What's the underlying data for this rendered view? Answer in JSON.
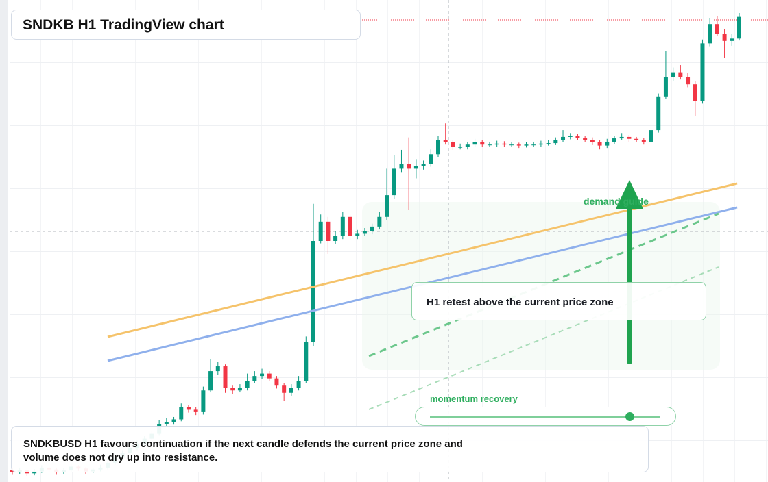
{
  "chart_data": {
    "type": "candlestick",
    "title": "SNDKB H1 TradingView chart",
    "up_color": "#089981",
    "down_color": "#f23645",
    "ylim": [
      0,
      100
    ],
    "candles": [
      [
        2.5,
        3,
        1.5,
        2
      ],
      [
        2,
        3,
        1.6,
        2.5
      ],
      [
        2.5,
        2.9,
        1.3,
        1.8
      ],
      [
        1.8,
        2.7,
        1.4,
        2.2
      ],
      [
        2.2,
        3.5,
        1.9,
        3
      ],
      [
        3,
        3.3,
        2.1,
        2.6
      ],
      [
        2.6,
        3,
        1.5,
        2
      ],
      [
        2,
        2.9,
        1.7,
        2.4
      ],
      [
        2.4,
        3.7,
        2.1,
        3.2
      ],
      [
        3.2,
        3.5,
        2.3,
        2.8
      ],
      [
        2.8,
        3.1,
        1.7,
        2.2
      ],
      [
        2.2,
        3,
        1.9,
        2.6
      ],
      [
        2.6,
        3.6,
        2.2,
        3
      ],
      [
        3,
        4.6,
        2.6,
        4
      ],
      [
        4,
        5.5,
        3.6,
        5
      ],
      [
        5,
        6.6,
        4.5,
        6
      ],
      [
        6,
        7.5,
        5.5,
        7
      ],
      [
        7,
        8.6,
        6.6,
        8
      ],
      [
        8,
        9.5,
        7.5,
        9
      ],
      [
        9,
        10.6,
        8.5,
        10
      ],
      [
        10,
        12.8,
        9.6,
        12
      ],
      [
        12,
        13.3,
        11.5,
        12.5
      ],
      [
        12.5,
        13.5,
        11.9,
        13
      ],
      [
        13,
        16.3,
        12.6,
        15.5
      ],
      [
        15.5,
        16,
        14.4,
        15
      ],
      [
        15,
        15.5,
        13.9,
        14.5
      ],
      [
        14.5,
        19.8,
        14,
        19
      ],
      [
        19,
        25.5,
        18.6,
        23
      ],
      [
        23,
        25,
        22.3,
        24
      ],
      [
        24,
        24.4,
        18.5,
        19.5
      ],
      [
        19.5,
        20,
        18.3,
        19
      ],
      [
        19,
        20.3,
        18.6,
        19.5
      ],
      [
        19.5,
        22.5,
        19,
        21
      ],
      [
        21,
        23,
        20.5,
        22
      ],
      [
        22,
        23.5,
        21.4,
        22.5
      ],
      [
        22.5,
        23,
        20.9,
        21.5
      ],
      [
        21.5,
        22,
        19.4,
        20
      ],
      [
        20,
        20.5,
        16.8,
        18.5
      ],
      [
        18.5,
        20.3,
        17.9,
        19.5
      ],
      [
        19.5,
        22,
        19,
        21
      ],
      [
        21,
        30.2,
        20.5,
        29
      ],
      [
        29,
        57.7,
        28.2,
        50
      ],
      [
        50,
        55.5,
        49.5,
        54
      ],
      [
        54,
        55,
        47.3,
        50
      ],
      [
        50,
        52,
        49.4,
        51
      ],
      [
        51,
        56,
        50.4,
        55
      ],
      [
        55,
        55.5,
        50.2,
        51
      ],
      [
        51,
        52.3,
        50.4,
        51.5
      ],
      [
        51.5,
        52.7,
        51,
        52
      ],
      [
        52,
        53.6,
        51.4,
        53
      ],
      [
        53,
        56,
        52.4,
        55
      ],
      [
        55,
        65,
        54.4,
        59.5
      ],
      [
        59.5,
        67.8,
        58.8,
        65
      ],
      [
        65,
        68.9,
        64.3,
        66
      ],
      [
        66,
        71.5,
        56.5,
        65
      ],
      [
        65,
        67,
        63,
        65.5
      ],
      [
        65.5,
        66.7,
        64.8,
        66
      ],
      [
        66,
        69,
        65.4,
        68
      ],
      [
        68,
        71.8,
        67.4,
        71
      ],
      [
        71,
        74.4,
        70,
        70.5
      ],
      [
        70.5,
        71,
        68.9,
        69.5
      ],
      [
        69.5,
        70.2,
        69,
        69.5
      ],
      [
        69.5,
        70.6,
        69,
        70
      ],
      [
        70,
        71.2,
        69.6,
        70.5
      ],
      [
        70.5,
        71,
        69.5,
        70
      ],
      [
        70,
        70.6,
        69.5,
        70
      ],
      [
        70,
        70.8,
        69.6,
        70.2
      ],
      [
        70.2,
        70.7,
        69.5,
        70
      ],
      [
        70,
        70.6,
        69.5,
        70
      ],
      [
        70,
        70.4,
        69.3,
        69.8
      ],
      [
        69.8,
        70.5,
        69.4,
        70
      ],
      [
        70,
        70.6,
        69.5,
        70
      ],
      [
        70,
        70.8,
        69.6,
        70.2
      ],
      [
        70.2,
        70.9,
        69.8,
        70.3
      ],
      [
        70.3,
        71.5,
        69.9,
        71
      ],
      [
        71,
        73,
        70.5,
        71.6
      ],
      [
        71.6,
        72.4,
        71.1,
        71.8
      ],
      [
        71.8,
        72.2,
        70.9,
        71.4
      ],
      [
        71.4,
        71.8,
        70.5,
        71
      ],
      [
        71,
        71.5,
        69.9,
        70.5
      ],
      [
        70.5,
        71,
        69,
        69.8
      ],
      [
        69.8,
        71.2,
        69.3,
        70.6
      ],
      [
        70.6,
        71.8,
        70.1,
        71.3
      ],
      [
        71.3,
        72.4,
        70.9,
        71.6
      ],
      [
        71.6,
        72,
        70.6,
        71.2
      ],
      [
        71.2,
        71.6,
        70.5,
        71
      ],
      [
        71,
        71.4,
        70,
        70.6
      ],
      [
        70.6,
        75.6,
        70.2,
        73
      ],
      [
        73,
        80.6,
        72.5,
        80
      ],
      [
        80,
        89.4,
        79.5,
        84
      ],
      [
        84,
        86,
        83.2,
        85
      ],
      [
        85,
        86.5,
        83.5,
        84
      ],
      [
        84,
        84.8,
        81.9,
        82.5
      ],
      [
        82.5,
        83.2,
        76,
        79
      ],
      [
        79,
        91.8,
        78.5,
        91
      ],
      [
        91,
        96.3,
        90.4,
        95
      ],
      [
        95,
        96.7,
        92.5,
        93
      ],
      [
        93,
        94,
        88,
        91.5
      ],
      [
        91.5,
        93,
        90.5,
        92
      ],
      [
        92,
        97.3,
        91.6,
        96.5
      ]
    ],
    "zone_label": "demand guide",
    "callout": "H1 retest above the current price zone",
    "slider_label": "momentum recovery",
    "summary": "SNDKBUSD H1 favours continuation if the next candle defends the current price zone and volume does not dry up into resistance."
  }
}
